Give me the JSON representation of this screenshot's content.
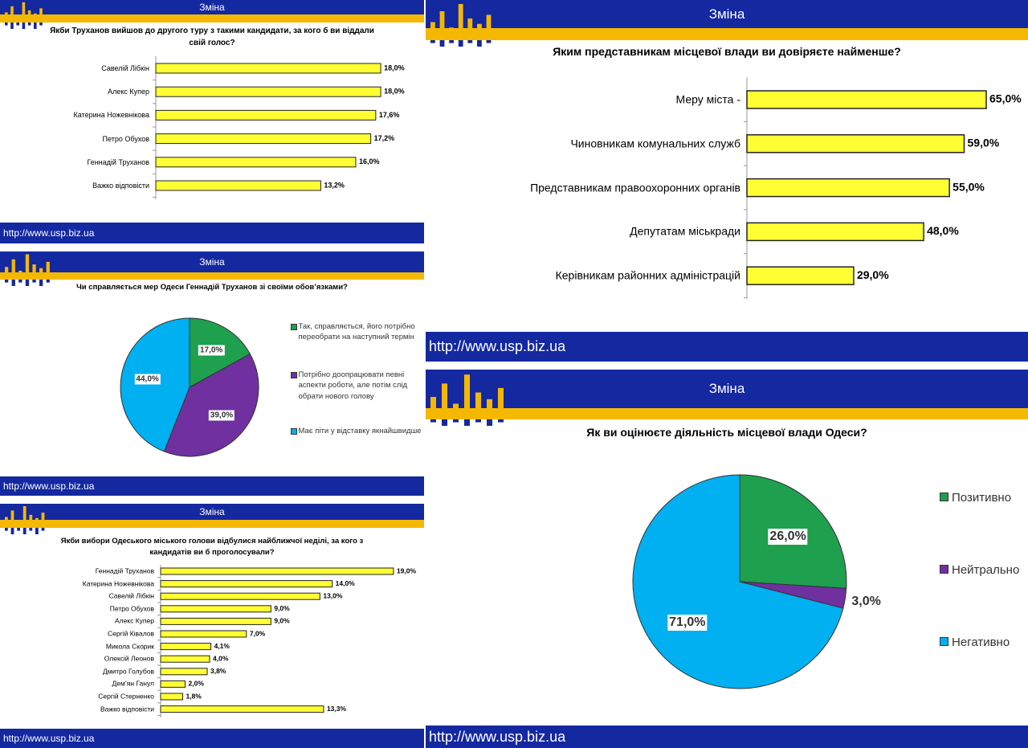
{
  "chart_data": [
    {
      "type": "bar",
      "brand": "Зміна",
      "source": "http://www.usp.biz.ua",
      "title": "Якби Труханов вийшов до другого туру з такими кандидати, за кого б ви віддали свій голос?",
      "categories": [
        "Савелій Лібкін",
        "Алекс Купер",
        "Катерина Ножевнікова",
        "Петро Обухов",
        "Геннадій Труханов",
        "Важко відповісти"
      ],
      "values": [
        18.0,
        18.0,
        17.6,
        17.2,
        16.0,
        13.2
      ],
      "value_labels": [
        "18,0%",
        "18,0%",
        "17,6%",
        "17,2%",
        "16,0%",
        "13,2%"
      ],
      "color": "#ffff33"
    },
    {
      "type": "pie",
      "brand": "Зміна",
      "source": "http://www.usp.biz.ua",
      "title": "Чи справляється мер Одеси Геннадій Труханов зі своїми обов’язками?",
      "categories": [
        "Так, справляється, його потрібно переобрати на наступний термін",
        "Потрібно доопрацювати певні аспекти роботи, але потім слід обрати нового голову",
        "Має піти у відставку якнайшвидше"
      ],
      "values": [
        17.0,
        39.0,
        44.0
      ],
      "value_labels": [
        "17,0%",
        "39,0%",
        "44,0%"
      ],
      "colors": [
        "#1ea04f",
        "#7030a0",
        "#00b0f0"
      ]
    },
    {
      "type": "bar",
      "brand": "Зміна",
      "source": "http://www.usp.biz.ua",
      "title": "Якби вибори Одеського міського голови відбулися найближчої неділі, за кого з кандидатів ви б проголосували?",
      "categories": [
        "Геннадій Труханов",
        "Катерина Ножевнікова",
        "Савелій Лібкін",
        "Петро Обухов",
        "Алекс Купер",
        "Сергій Ківалов",
        "Микола Скорик",
        "Олексій Леонов",
        "Дмитро Голубов",
        "Дем’ян Ганул",
        "Сергій Стерненко",
        "Важко відповісти"
      ],
      "values": [
        19.0,
        14.0,
        13.0,
        9.0,
        9.0,
        7.0,
        4.1,
        4.0,
        3.8,
        2.0,
        1.8,
        13.3
      ],
      "value_labels": [
        "19,0%",
        "14,0%",
        "13,0%",
        "9,0%",
        "9,0%",
        "7,0%",
        "4,1%",
        "4,0%",
        "3,8%",
        "2,0%",
        "1,8%",
        "13,3%"
      ],
      "color": "#ffff33"
    },
    {
      "type": "bar",
      "brand": "Зміна",
      "source": "http://www.usp.biz.ua",
      "title": "Яким представникам місцевої влади ви довіряєте найменше?",
      "categories": [
        "Меру міста -",
        "Чиновникам комунальних служб",
        "Представникам правоохоронних органів",
        "Депутатам міськради",
        "Керівникам районних адміністрацій"
      ],
      "values": [
        65.0,
        59.0,
        55.0,
        48.0,
        29.0
      ],
      "value_labels": [
        "65,0%",
        "59,0%",
        "55,0%",
        "48,0%",
        "29,0%"
      ],
      "color": "#ffff33"
    },
    {
      "type": "pie",
      "brand": "Зміна",
      "source": "http://www.usp.biz.ua",
      "title": "Як ви оцінюєте діяльність місцевої влади Одеси?",
      "categories": [
        "Позитивно",
        "Нейтрально",
        "Негативно"
      ],
      "values": [
        26.0,
        3.0,
        71.0
      ],
      "value_labels": [
        "26,0%",
        "3,0%",
        "71,0%"
      ],
      "colors": [
        "#1ea04f",
        "#7030a0",
        "#00b0f0"
      ]
    }
  ]
}
